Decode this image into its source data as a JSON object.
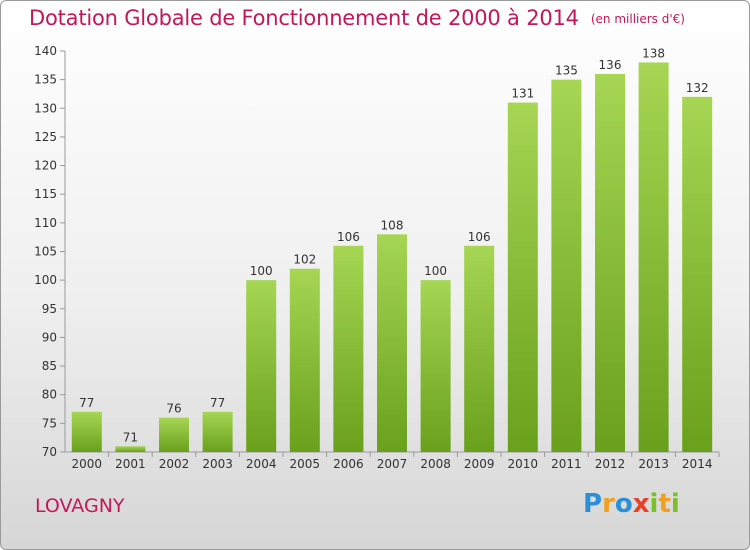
{
  "title": "Dotation Globale de Fonctionnement de 2000 à 2014",
  "unit": "(en milliers d'€)",
  "commune": "LOVAGNY",
  "logo": {
    "letters": [
      "P",
      "r",
      "o",
      "x",
      "i",
      "t",
      "i"
    ],
    "colors": [
      "#2a8fd6",
      "#f0a020",
      "#2a8fd6",
      "#e8402a",
      "#7bbf2a",
      "#f0a020",
      "#7bbf2a"
    ]
  },
  "colors": {
    "bar_light": "#a6d653",
    "bar_dark": "#69a01c",
    "title": "#c2185b"
  },
  "chart_data": {
    "type": "bar",
    "title": "Dotation Globale de Fonctionnement de 2000 à 2014",
    "categories": [
      "2000",
      "2001",
      "2002",
      "2003",
      "2004",
      "2005",
      "2006",
      "2007",
      "2008",
      "2009",
      "2010",
      "2011",
      "2012",
      "2013",
      "2014"
    ],
    "values": [
      77,
      71,
      76,
      77,
      100,
      102,
      106,
      108,
      100,
      106,
      131,
      135,
      136,
      138,
      132
    ],
    "ylim": [
      70,
      140
    ],
    "yticks": [
      70,
      75,
      80,
      85,
      90,
      95,
      100,
      105,
      110,
      115,
      120,
      125,
      130,
      135,
      140
    ],
    "grid": false
  }
}
